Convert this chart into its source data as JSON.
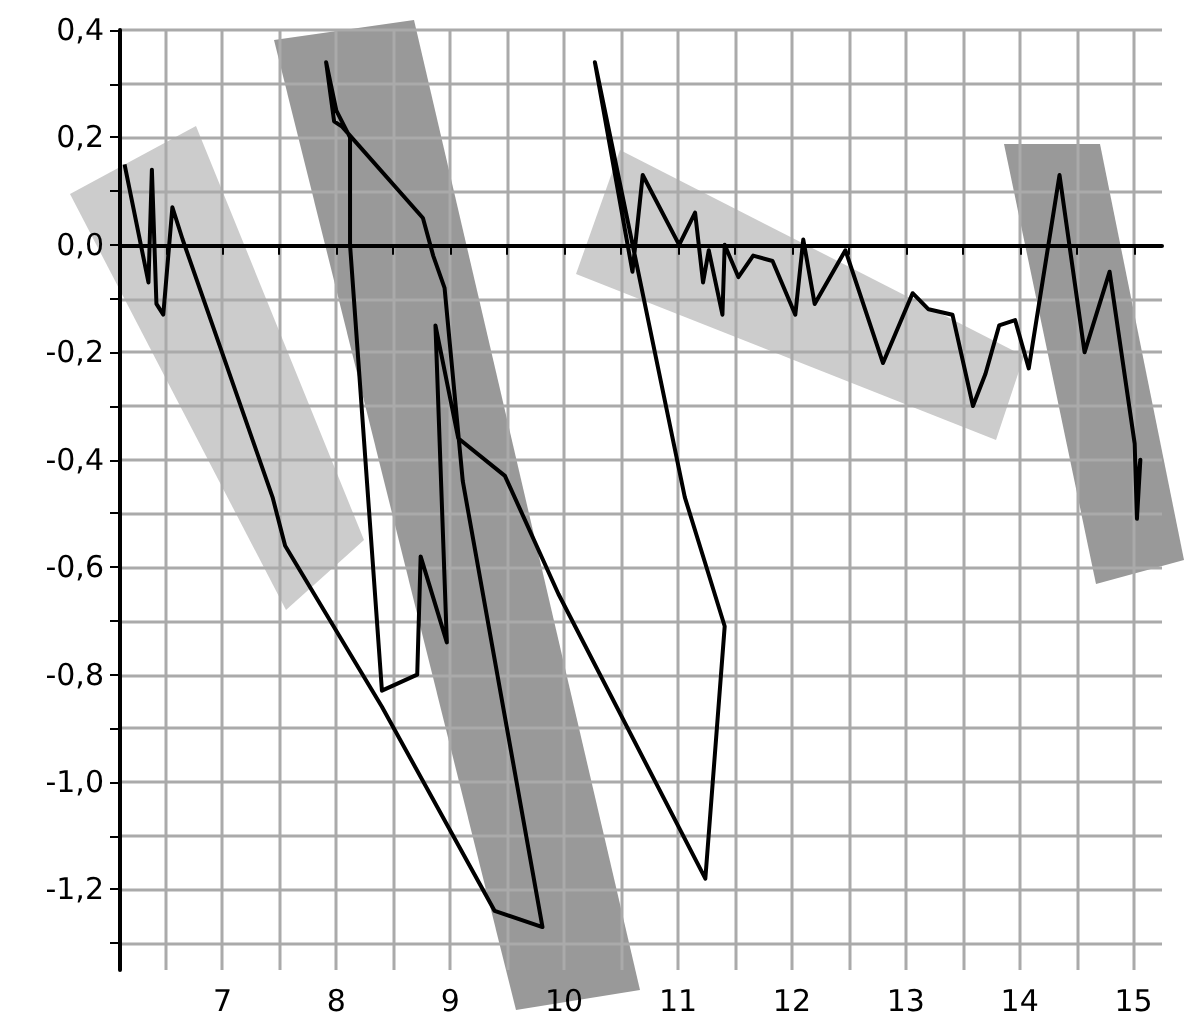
{
  "chart_data": {
    "type": "line",
    "x": [
      6.14,
      6.35,
      6.38,
      6.42,
      6.48,
      6.56,
      6.65,
      7.44,
      7.55,
      8.4,
      9.39,
      9.81,
      9.11,
      8.95,
      8.85,
      8.76,
      8.05,
      7.98,
      7.91,
      8.0,
      8.12,
      8.12,
      8.4,
      8.71,
      8.74,
      8.97,
      8.87,
      9.07,
      9.48,
      9.95,
      11.24,
      11.41,
      11.06,
      10.27,
      10.6,
      10.69,
      11.01,
      11.15,
      11.22,
      11.27,
      11.39,
      11.41,
      11.53,
      11.66,
      11.83,
      12.03,
      12.1,
      12.2,
      12.47,
      12.8,
      13.06,
      13.2,
      13.41,
      13.59,
      13.7,
      13.82,
      13.96,
      14.08,
      14.35,
      14.57,
      14.79,
      15.01,
      15.03,
      15.06,
      15.03
    ],
    "series": [
      {
        "color": "#000000",
        "values": [
          0.15,
          -0.07,
          0.14,
          -0.11,
          -0.13,
          0.07,
          0.01,
          -0.47,
          -0.56,
          -0.86,
          -1.24,
          -1.27,
          -0.44,
          -0.08,
          -0.02,
          0.05,
          0.22,
          0.23,
          0.34,
          0.25,
          0.2,
          0.0,
          -0.83,
          -0.8,
          -0.58,
          -0.74,
          -0.15,
          -0.36,
          -0.43,
          -0.65,
          -1.18,
          -0.71,
          -0.47,
          0.34,
          -0.05,
          0.13,
          0.0,
          0.06,
          -0.07,
          -0.01,
          -0.13,
          0.0,
          -0.06,
          -0.02,
          -0.03,
          -0.13,
          0.01,
          -0.11,
          -0.01,
          -0.22,
          -0.09,
          -0.12,
          -0.13,
          -0.3,
          -0.24,
          -0.15,
          -0.14,
          -0.23,
          0.13,
          -0.2,
          -0.05,
          -0.37,
          -0.51,
          -0.4,
          -0.45
        ]
      }
    ],
    "xlim": [
      6.1,
      15.25
    ],
    "ylim": [
      -1.35,
      0.4
    ],
    "xticks": [
      {
        "value": 6.5,
        "label": null
      },
      7,
      {
        "value": 7.5,
        "label": null
      },
      8,
      {
        "value": 8.5,
        "label": null
      },
      9,
      {
        "value": 9.5,
        "label": null
      },
      10,
      {
        "value": 10.5,
        "label": null
      },
      11,
      {
        "value": 11.5,
        "label": null
      },
      12,
      {
        "value": 12.5,
        "label": null
      },
      13,
      {
        "value": 13.5,
        "label": null
      },
      14,
      {
        "value": 14.5,
        "label": null
      },
      15
    ],
    "yticks": [
      {
        "value": -1.3,
        "label": null
      },
      {
        "value": -1.2,
        "label": "-1,2"
      },
      {
        "value": -1.1,
        "label": null
      },
      {
        "value": -1.0,
        "label": "-1,0"
      },
      {
        "value": -0.9,
        "label": null
      },
      {
        "value": -0.8,
        "label": "-0,8"
      },
      {
        "value": -0.7,
        "label": null
      },
      {
        "value": -0.6,
        "label": "-0,6"
      },
      {
        "value": -0.5,
        "label": null
      },
      {
        "value": -0.4,
        "label": "-0,4"
      },
      {
        "value": -0.3,
        "label": null
      },
      {
        "value": -0.2,
        "label": "-0,2"
      },
      {
        "value": -0.1,
        "label": null
      },
      {
        "value": 0,
        "label": "0,0"
      },
      {
        "value": 0.1,
        "label": null
      },
      {
        "value": 0.2,
        "label": "0,2"
      },
      {
        "value": 0.3,
        "label": null
      },
      {
        "value": 0.4,
        "label": "0,4"
      }
    ],
    "grid": true,
    "marker": "none",
    "line_style": "solid"
  }
}
